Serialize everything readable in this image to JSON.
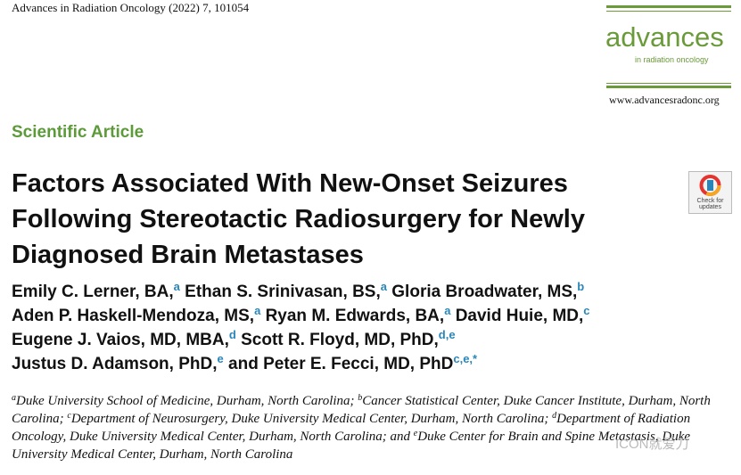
{
  "header": {
    "journal": "Advances in Radiation Oncology (2022) 7, 101054",
    "logo": "advances",
    "logo_sub": "in radiation oncology",
    "url": "www.advancesradonc.org"
  },
  "article_type": "Scientific Article",
  "title": "Factors Associated With New-Onset Seizures Following Stereotactic Radiosurgery for Newly Diagnosed Brain Metastases",
  "badge": "Check for updates",
  "authors": [
    {
      "name": "Emily C. Lerner, BA,",
      "sup": "a"
    },
    {
      "name": "Ethan S. Srinivasan, BS,",
      "sup": "a"
    },
    {
      "name": "Gloria Broadwater, MS,",
      "sup": "b"
    },
    {
      "name": "Aden P. Haskell-Mendoza, MS,",
      "sup": "a"
    },
    {
      "name": "Ryan M. Edwards, BA,",
      "sup": "a"
    },
    {
      "name": "David Huie, MD,",
      "sup": "c"
    },
    {
      "name": "Eugene J. Vaios, MD, MBA,",
      "sup": "d"
    },
    {
      "name": "Scott R. Floyd, MD, PhD,",
      "sup": "d,e"
    },
    {
      "name": "Justus D. Adamson, PhD,",
      "sup": "e"
    },
    {
      "name": "and Peter E. Fecci, MD, PhD",
      "sup": "c,e,*"
    }
  ],
  "affiliations": [
    {
      "sup": "a",
      "text": "Duke University School of Medicine, Durham, North Carolina;"
    },
    {
      "sup": "b",
      "text": "Cancer Statistical Center, Duke Cancer Institute, Durham, North Carolina;"
    },
    {
      "sup": "c",
      "text": "Department of Neurosurgery, Duke University Medical Center, Durham, North Carolina;"
    },
    {
      "sup": "d",
      "text": "Department of Radiation Oncology, Duke University Medical Center, Durham, North Carolina; and"
    },
    {
      "sup": "e",
      "text": "Duke Center for Brain and Spine Metastasis, Duke University Medical Center, Durham, North Carolina"
    }
  ],
  "watermark": "ICON就爱刀"
}
